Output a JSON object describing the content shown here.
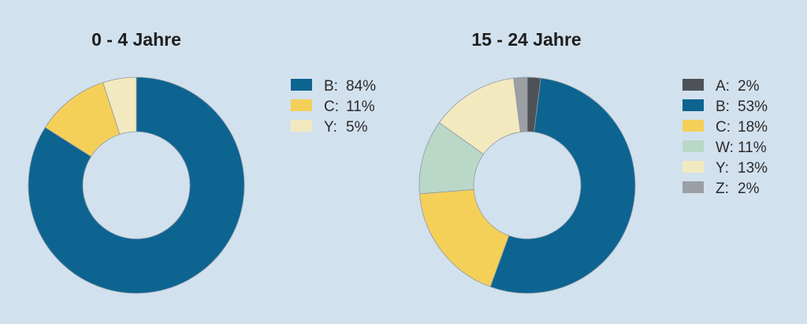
{
  "chart_data": [
    {
      "type": "pie",
      "title": "0 - 4 Jahre",
      "series": [
        {
          "label": "B:",
          "value_text": "84%",
          "value": 84,
          "color": "#0d6491"
        },
        {
          "label": "C:",
          "value_text": "11%",
          "value": 11,
          "color": "#f4d058"
        },
        {
          "label": "Y:",
          "value_text": "5%",
          "value": 5,
          "color": "#f2e9bf"
        }
      ],
      "legend_position": "right"
    },
    {
      "type": "pie",
      "title": "15 - 24 Jahre",
      "series": [
        {
          "label": "A:",
          "value_text": "2%",
          "value": 2,
          "color": "#4e5257"
        },
        {
          "label": "B:",
          "value_text": "53%",
          "value": 53,
          "color": "#0d6491"
        },
        {
          "label": "C:",
          "value_text": "18%",
          "value": 18,
          "color": "#f4d058"
        },
        {
          "label": "W:",
          "value_text": "11%",
          "value": 11,
          "color": "#b9d8c8"
        },
        {
          "label": "Y:",
          "value_text": "13%",
          "value": 13,
          "color": "#f2e9bf"
        },
        {
          "label": "Z:",
          "value_text": "2%",
          "value": 2,
          "color": "#9b9fa4"
        }
      ],
      "legend_position": "right"
    }
  ]
}
